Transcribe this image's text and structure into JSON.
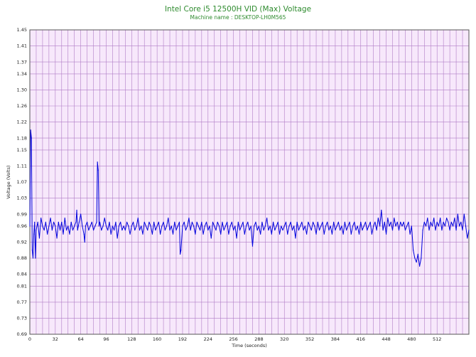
{
  "chart_data": {
    "type": "line",
    "title": "Intel Core i5 12500H VID (Max) Voltage",
    "subtitle": "Machine name : DESKTOP-LH0M565",
    "xlabel": "Time (seconds)",
    "ylabel": "Voltage (Volts)",
    "xlim": [
      0,
      552
    ],
    "ylim": [
      0.69,
      1.45
    ],
    "x_ticks": [
      0,
      32,
      64,
      96,
      128,
      160,
      192,
      224,
      256,
      288,
      320,
      352,
      384,
      416,
      448,
      480,
      512
    ],
    "x_minor_step": 8,
    "y_ticks": [
      "0.69",
      "0.73",
      "0.77",
      "0.81",
      "0.84",
      "0.88",
      "0.92",
      "0.96",
      "0.99",
      "1.03",
      "1.07",
      "1.11",
      "1.15",
      "1.18",
      "1.22",
      "1.26",
      "1.30",
      "1.34",
      "1.37",
      "1.41",
      "1.45"
    ],
    "grid": true,
    "colors": {
      "plot_background": "#f7e8fb",
      "grid": "#b07cc6",
      "line": "#0000dd",
      "title": "#2e8b2e"
    },
    "series": [
      {
        "values": [
          [
            0,
            0.96
          ],
          [
            1,
            1.2
          ],
          [
            2,
            1.18
          ],
          [
            3,
            0.9
          ],
          [
            4,
            0.88
          ],
          [
            5,
            0.94
          ],
          [
            6,
            0.97
          ],
          [
            7,
            0.88
          ],
          [
            8,
            0.95
          ],
          [
            10,
            0.97
          ],
          [
            12,
            0.93
          ],
          [
            14,
            0.98
          ],
          [
            16,
            0.96
          ],
          [
            18,
            0.95
          ],
          [
            20,
            0.97
          ],
          [
            22,
            0.94
          ],
          [
            24,
            0.96
          ],
          [
            26,
            0.98
          ],
          [
            28,
            0.95
          ],
          [
            30,
            0.97
          ],
          [
            32,
            0.96
          ],
          [
            34,
            0.93
          ],
          [
            36,
            0.97
          ],
          [
            38,
            0.95
          ],
          [
            40,
            0.97
          ],
          [
            42,
            0.94
          ],
          [
            44,
            0.98
          ],
          [
            46,
            0.95
          ],
          [
            48,
            0.96
          ],
          [
            50,
            0.94
          ],
          [
            52,
            0.97
          ],
          [
            54,
            0.95
          ],
          [
            56,
            0.96
          ],
          [
            58,
            0.97
          ],
          [
            59,
            1.0
          ],
          [
            60,
            0.95
          ],
          [
            62,
            0.97
          ],
          [
            64,
            0.99
          ],
          [
            66,
            0.96
          ],
          [
            68,
            0.94
          ],
          [
            69,
            0.92
          ],
          [
            70,
            0.96
          ],
          [
            72,
            0.97
          ],
          [
            74,
            0.95
          ],
          [
            76,
            0.96
          ],
          [
            78,
            0.97
          ],
          [
            80,
            0.95
          ],
          [
            82,
            0.96
          ],
          [
            84,
            0.97
          ],
          [
            85,
            1.12
          ],
          [
            86,
            1.1
          ],
          [
            87,
            0.96
          ],
          [
            88,
            0.97
          ],
          [
            90,
            0.95
          ],
          [
            92,
            0.96
          ],
          [
            94,
            0.98
          ],
          [
            96,
            0.96
          ],
          [
            98,
            0.95
          ],
          [
            100,
            0.97
          ],
          [
            102,
            0.94
          ],
          [
            104,
            0.96
          ],
          [
            106,
            0.95
          ],
          [
            108,
            0.97
          ],
          [
            110,
            0.93
          ],
          [
            112,
            0.96
          ],
          [
            114,
            0.97
          ],
          [
            116,
            0.95
          ],
          [
            118,
            0.96
          ],
          [
            120,
            0.95
          ],
          [
            122,
            0.97
          ],
          [
            124,
            0.96
          ],
          [
            126,
            0.94
          ],
          [
            128,
            0.96
          ],
          [
            130,
            0.97
          ],
          [
            132,
            0.95
          ],
          [
            134,
            0.96
          ],
          [
            136,
            0.98
          ],
          [
            138,
            0.95
          ],
          [
            140,
            0.96
          ],
          [
            142,
            0.94
          ],
          [
            144,
            0.97
          ],
          [
            146,
            0.96
          ],
          [
            148,
            0.95
          ],
          [
            150,
            0.97
          ],
          [
            152,
            0.96
          ],
          [
            154,
            0.94
          ],
          [
            156,
            0.97
          ],
          [
            158,
            0.95
          ],
          [
            160,
            0.96
          ],
          [
            162,
            0.97
          ],
          [
            164,
            0.94
          ],
          [
            166,
            0.96
          ],
          [
            168,
            0.97
          ],
          [
            170,
            0.95
          ],
          [
            172,
            0.96
          ],
          [
            174,
            0.98
          ],
          [
            176,
            0.95
          ],
          [
            178,
            0.96
          ],
          [
            180,
            0.94
          ],
          [
            182,
            0.97
          ],
          [
            184,
            0.95
          ],
          [
            186,
            0.96
          ],
          [
            188,
            0.97
          ],
          [
            189,
            0.89
          ],
          [
            190,
            0.9
          ],
          [
            192,
            0.96
          ],
          [
            194,
            0.97
          ],
          [
            196,
            0.95
          ],
          [
            198,
            0.96
          ],
          [
            200,
            0.98
          ],
          [
            202,
            0.95
          ],
          [
            204,
            0.97
          ],
          [
            206,
            0.96
          ],
          [
            208,
            0.94
          ],
          [
            210,
            0.97
          ],
          [
            212,
            0.96
          ],
          [
            214,
            0.95
          ],
          [
            216,
            0.97
          ],
          [
            218,
            0.94
          ],
          [
            220,
            0.96
          ],
          [
            222,
            0.97
          ],
          [
            224,
            0.95
          ],
          [
            226,
            0.96
          ],
          [
            228,
            0.93
          ],
          [
            230,
            0.97
          ],
          [
            232,
            0.96
          ],
          [
            234,
            0.95
          ],
          [
            236,
            0.97
          ],
          [
            238,
            0.96
          ],
          [
            240,
            0.94
          ],
          [
            242,
            0.97
          ],
          [
            244,
            0.95
          ],
          [
            246,
            0.96
          ],
          [
            248,
            0.97
          ],
          [
            250,
            0.94
          ],
          [
            252,
            0.96
          ],
          [
            254,
            0.97
          ],
          [
            256,
            0.95
          ],
          [
            258,
            0.96
          ],
          [
            260,
            0.93
          ],
          [
            262,
            0.97
          ],
          [
            264,
            0.95
          ],
          [
            266,
            0.96
          ],
          [
            268,
            0.97
          ],
          [
            270,
            0.94
          ],
          [
            272,
            0.96
          ],
          [
            274,
            0.97
          ],
          [
            276,
            0.95
          ],
          [
            278,
            0.96
          ],
          [
            280,
            0.91
          ],
          [
            282,
            0.96
          ],
          [
            284,
            0.97
          ],
          [
            286,
            0.95
          ],
          [
            288,
            0.96
          ],
          [
            290,
            0.94
          ],
          [
            292,
            0.97
          ],
          [
            294,
            0.95
          ],
          [
            296,
            0.96
          ],
          [
            298,
            0.98
          ],
          [
            300,
            0.95
          ],
          [
            302,
            0.96
          ],
          [
            304,
            0.94
          ],
          [
            306,
            0.97
          ],
          [
            308,
            0.95
          ],
          [
            310,
            0.96
          ],
          [
            312,
            0.97
          ],
          [
            314,
            0.94
          ],
          [
            316,
            0.96
          ],
          [
            318,
            0.95
          ],
          [
            320,
            0.96
          ],
          [
            322,
            0.97
          ],
          [
            324,
            0.94
          ],
          [
            326,
            0.96
          ],
          [
            328,
            0.97
          ],
          [
            330,
            0.95
          ],
          [
            332,
            0.96
          ],
          [
            334,
            0.93
          ],
          [
            336,
            0.97
          ],
          [
            338,
            0.95
          ],
          [
            340,
            0.96
          ],
          [
            342,
            0.97
          ],
          [
            344,
            0.95
          ],
          [
            346,
            0.96
          ],
          [
            348,
            0.94
          ],
          [
            350,
            0.97
          ],
          [
            352,
            0.96
          ],
          [
            354,
            0.95
          ],
          [
            356,
            0.97
          ],
          [
            358,
            0.96
          ],
          [
            360,
            0.94
          ],
          [
            362,
            0.97
          ],
          [
            364,
            0.95
          ],
          [
            366,
            0.96
          ],
          [
            368,
            0.97
          ],
          [
            370,
            0.94
          ],
          [
            372,
            0.96
          ],
          [
            374,
            0.97
          ],
          [
            376,
            0.95
          ],
          [
            378,
            0.96
          ],
          [
            380,
            0.94
          ],
          [
            382,
            0.97
          ],
          [
            384,
            0.95
          ],
          [
            386,
            0.96
          ],
          [
            388,
            0.97
          ],
          [
            390,
            0.95
          ],
          [
            392,
            0.96
          ],
          [
            394,
            0.94
          ],
          [
            396,
            0.97
          ],
          [
            398,
            0.95
          ],
          [
            400,
            0.96
          ],
          [
            402,
            0.97
          ],
          [
            404,
            0.94
          ],
          [
            406,
            0.96
          ],
          [
            408,
            0.97
          ],
          [
            410,
            0.95
          ],
          [
            412,
            0.96
          ],
          [
            414,
            0.94
          ],
          [
            416,
            0.97
          ],
          [
            418,
            0.95
          ],
          [
            420,
            0.96
          ],
          [
            422,
            0.97
          ],
          [
            424,
            0.95
          ],
          [
            426,
            0.96
          ],
          [
            428,
            0.97
          ],
          [
            430,
            0.94
          ],
          [
            432,
            0.96
          ],
          [
            434,
            0.97
          ],
          [
            436,
            0.95
          ],
          [
            438,
            0.98
          ],
          [
            440,
            0.96
          ],
          [
            442,
            1.0
          ],
          [
            444,
            0.95
          ],
          [
            446,
            0.97
          ],
          [
            448,
            0.94
          ],
          [
            450,
            0.98
          ],
          [
            452,
            0.96
          ],
          [
            454,
            0.97
          ],
          [
            456,
            0.95
          ],
          [
            458,
            0.98
          ],
          [
            460,
            0.96
          ],
          [
            462,
            0.97
          ],
          [
            464,
            0.95
          ],
          [
            466,
            0.97
          ],
          [
            468,
            0.96
          ],
          [
            470,
            0.97
          ],
          [
            472,
            0.95
          ],
          [
            474,
            0.96
          ],
          [
            476,
            0.97
          ],
          [
            478,
            0.94
          ],
          [
            480,
            0.96
          ],
          [
            482,
            0.9
          ],
          [
            484,
            0.88
          ],
          [
            486,
            0.87
          ],
          [
            488,
            0.89
          ],
          [
            490,
            0.86
          ],
          [
            492,
            0.88
          ],
          [
            494,
            0.95
          ],
          [
            496,
            0.97
          ],
          [
            498,
            0.96
          ],
          [
            500,
            0.98
          ],
          [
            502,
            0.95
          ],
          [
            504,
            0.97
          ],
          [
            506,
            0.96
          ],
          [
            508,
            0.98
          ],
          [
            510,
            0.95
          ],
          [
            512,
            0.97
          ],
          [
            514,
            0.96
          ],
          [
            516,
            0.98
          ],
          [
            518,
            0.95
          ],
          [
            520,
            0.97
          ],
          [
            522,
            0.96
          ],
          [
            524,
            0.98
          ],
          [
            526,
            0.97
          ],
          [
            528,
            0.95
          ],
          [
            530,
            0.97
          ],
          [
            532,
            0.96
          ],
          [
            534,
            0.98
          ],
          [
            536,
            0.95
          ],
          [
            538,
            0.99
          ],
          [
            540,
            0.96
          ],
          [
            542,
            0.97
          ],
          [
            544,
            0.95
          ],
          [
            546,
            0.99
          ],
          [
            548,
            0.96
          ],
          [
            550,
            0.93
          ],
          [
            552,
            0.95
          ]
        ]
      }
    ]
  }
}
